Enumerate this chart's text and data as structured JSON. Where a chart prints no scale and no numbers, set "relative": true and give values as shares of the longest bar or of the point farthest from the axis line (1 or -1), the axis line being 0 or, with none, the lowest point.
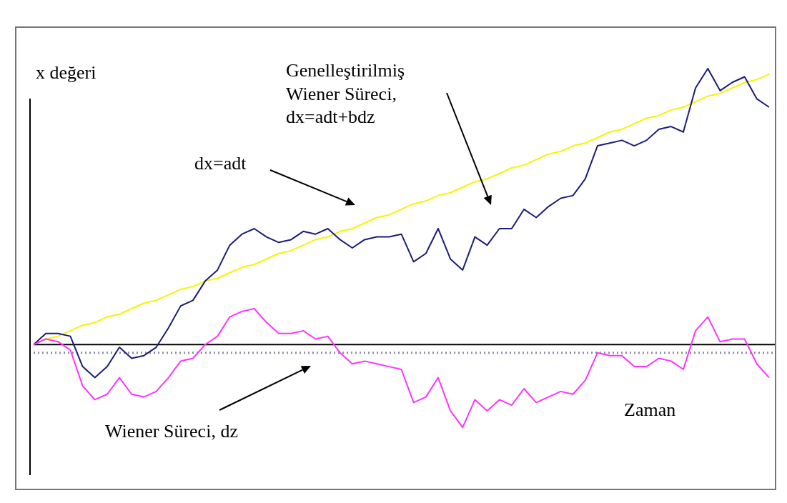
{
  "chart_data": {
    "type": "line",
    "relative": true,
    "marker": "none",
    "xlabel": "Zaman",
    "ylabel": "x değeri",
    "annotations": [
      "dx=adt",
      "Genelleştirilmiş\nWiener  Süreci,\ndx=adt+bdz",
      "Wiener Süreci, dz"
    ],
    "categories": [
      null,
      null,
      null,
      null,
      null,
      null,
      null,
      null,
      null,
      null,
      null,
      null,
      null,
      null,
      null,
      null,
      null,
      null,
      null,
      null,
      null,
      null,
      null,
      null,
      null,
      null,
      null,
      null,
      null,
      null,
      null,
      null,
      null,
      null,
      null,
      null,
      null,
      null,
      null,
      null,
      null,
      null,
      null,
      null,
      null,
      null,
      null,
      null,
      null,
      null,
      null,
      null,
      null,
      null,
      null,
      null,
      null,
      null,
      null,
      null,
      null
    ],
    "ref_lines": [
      {
        "axis": "y",
        "value": -0.03,
        "color": "#8c8ca8",
        "line_style": "dotted"
      }
    ],
    "series": [
      {
        "color": "#f5f500",
        "values": [
          0,
          0.02,
          0.03,
          0.05,
          0.07,
          0.08,
          0.1,
          0.11,
          0.13,
          0.15,
          0.16,
          0.18,
          0.2,
          0.21,
          0.23,
          0.24,
          0.26,
          0.28,
          0.29,
          0.31,
          0.33,
          0.34,
          0.36,
          0.38,
          0.39,
          0.41,
          0.42,
          0.44,
          0.46,
          0.47,
          0.49,
          0.51,
          0.52,
          0.54,
          0.55,
          0.57,
          0.59,
          0.6,
          0.62,
          0.64,
          0.65,
          0.67,
          0.69,
          0.7,
          0.72,
          0.73,
          0.75,
          0.77,
          0.78,
          0.8,
          0.82,
          0.83,
          0.85,
          0.86,
          0.88,
          0.9,
          0.91,
          0.93,
          0.95,
          0.96,
          0.98
        ]
      },
      {
        "color": "#1c1c78",
        "values": [
          0,
          0.04,
          0.04,
          0.03,
          -0.08,
          -0.12,
          -0.08,
          -0.01,
          -0.05,
          -0.04,
          -0.01,
          0.06,
          0.14,
          0.16,
          0.23,
          0.27,
          0.36,
          0.4,
          0.42,
          0.39,
          0.37,
          0.38,
          0.41,
          0.4,
          0.42,
          0.38,
          0.35,
          0.38,
          0.39,
          0.39,
          0.4,
          0.3,
          0.33,
          0.42,
          0.31,
          0.27,
          0.39,
          0.36,
          0.42,
          0.42,
          0.49,
          0.46,
          0.5,
          0.53,
          0.54,
          0.6,
          0.72,
          0.73,
          0.74,
          0.72,
          0.74,
          0.78,
          0.79,
          0.77,
          0.93,
          1.0,
          0.92,
          0.95,
          0.97,
          0.89,
          0.86
        ]
      },
      {
        "color": "#ff33ff",
        "values": [
          0,
          0.02,
          0.01,
          -0.02,
          -0.15,
          -0.2,
          -0.18,
          -0.12,
          -0.18,
          -0.19,
          -0.17,
          -0.12,
          -0.06,
          -0.05,
          0.0,
          0.03,
          0.1,
          0.12,
          0.13,
          0.08,
          0.04,
          0.04,
          0.05,
          0.02,
          0.03,
          -0.03,
          -0.07,
          -0.06,
          -0.07,
          -0.08,
          -0.09,
          -0.21,
          -0.19,
          -0.12,
          -0.24,
          -0.3,
          -0.2,
          -0.24,
          -0.2,
          -0.22,
          -0.16,
          -0.21,
          -0.19,
          -0.17,
          -0.18,
          -0.13,
          -0.03,
          -0.04,
          -0.04,
          -0.08,
          -0.08,
          -0.05,
          -0.06,
          -0.09,
          0.05,
          0.1,
          0.01,
          0.02,
          0.02,
          -0.07,
          -0.12
        ]
      }
    ]
  }
}
